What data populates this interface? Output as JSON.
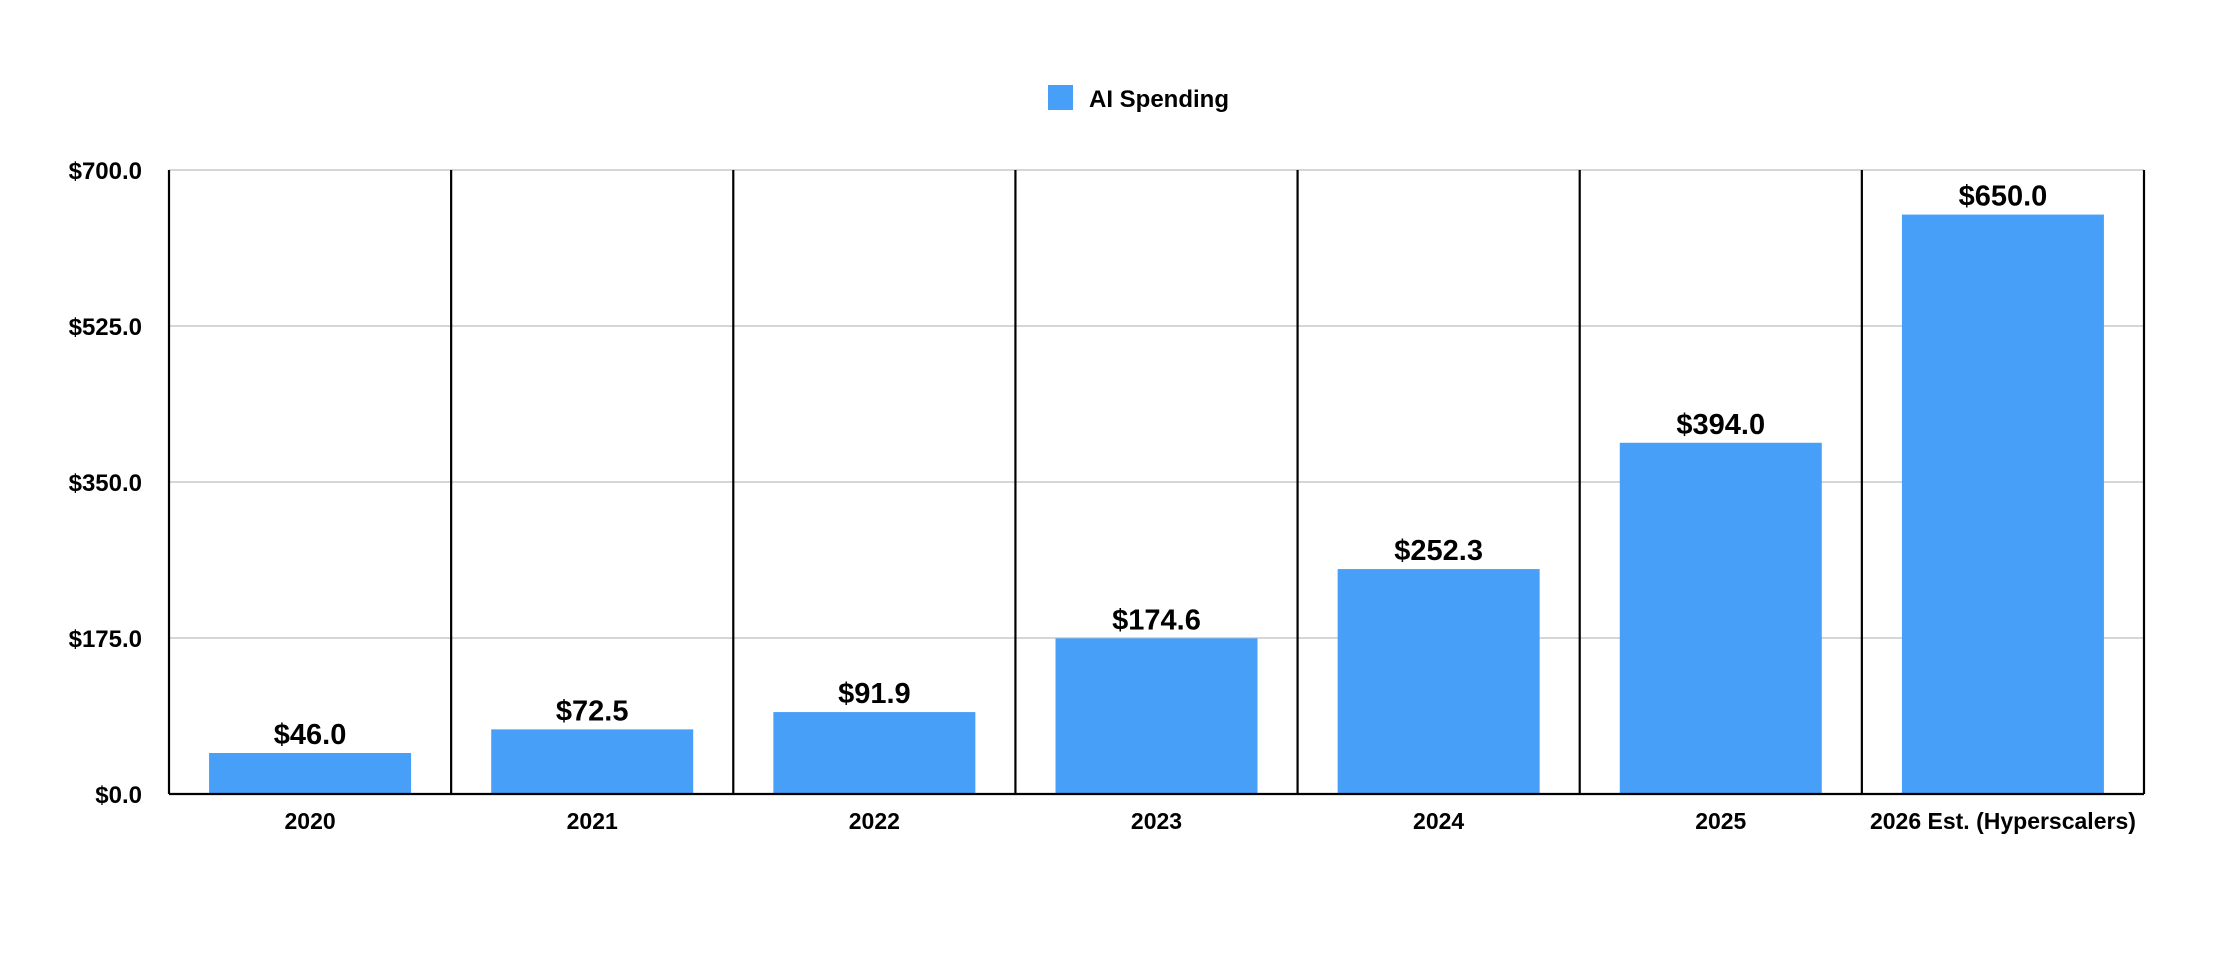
{
  "chart_data": {
    "type": "bar",
    "title": "",
    "xlabel": "",
    "ylabel": "",
    "categories": [
      "2020",
      "2021",
      "2022",
      "2023",
      "2024",
      "2025",
      "2026 Est. (Hyperscalers)"
    ],
    "series": [
      {
        "name": "AI Spending",
        "values": [
          46.0,
          72.5,
          91.9,
          174.6,
          252.3,
          394.0,
          650.0
        ],
        "data_labels": [
          "$46.0",
          "$72.5",
          "$91.9",
          "$174.6",
          "$252.3",
          "$394.0",
          "$650.0"
        ],
        "color": "#479ff8"
      }
    ],
    "ylim": [
      0,
      700
    ],
    "yticks": [
      0,
      175,
      350,
      525,
      700
    ],
    "ytick_labels": [
      "$0.0",
      "$175.0",
      "$350.0",
      "$525.0",
      "$700.0"
    ],
    "grid": true,
    "legend_position": "top-center",
    "category_dividers": true
  }
}
